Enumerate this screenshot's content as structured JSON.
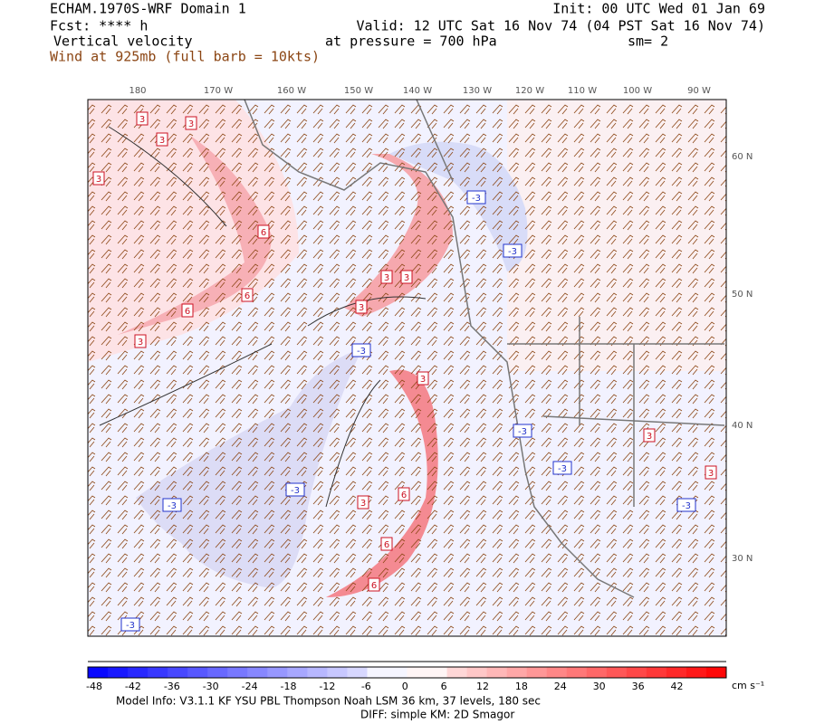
{
  "header": {
    "title": "ECHAM.1970S-WRF Domain 1",
    "fcst": "Fcst: **** h",
    "field": "Vertical velocity",
    "wind": "Wind at 925mb (full barb = 10kts)",
    "init": "Init: 00 UTC Wed 01 Jan 69",
    "valid": "Valid: 12 UTC Sat 16 Nov 74 (04 PST Sat 16 Nov 74)",
    "pressure": "at pressure =  700 hPa",
    "sm": "sm= 2"
  },
  "map": {
    "lon_labels": [
      "180",
      "170 W",
      "160 W",
      "150 W",
      "140 W",
      "130 W",
      "120 W",
      "110 W",
      "100 W",
      "90 W"
    ],
    "lat_labels": [
      "60 N",
      "50 N",
      "40 N",
      "30 N"
    ],
    "contour_labels": [
      3,
      3,
      3,
      3,
      3,
      3,
      3,
      3,
      3,
      3,
      3,
      3,
      6,
      6,
      6,
      6,
      6,
      6,
      -3,
      -3,
      -3,
      -3,
      -3,
      -3,
      -3,
      -3,
      -3
    ]
  },
  "colorbar": {
    "labels": [
      -48,
      -42,
      -36,
      -30,
      -24,
      -18,
      -12,
      -6,
      0,
      6,
      12,
      18,
      24,
      30,
      36,
      42
    ],
    "units": "cm s⁻¹"
  },
  "footer": {
    "model_info": "Model Info: V3.1.1    KF      YSU PBL   Thompson     Noah LSM  36 km,    37 levels,  180 sec",
    "diff": "DIFF: simple KM: 2D Smagor"
  }
}
